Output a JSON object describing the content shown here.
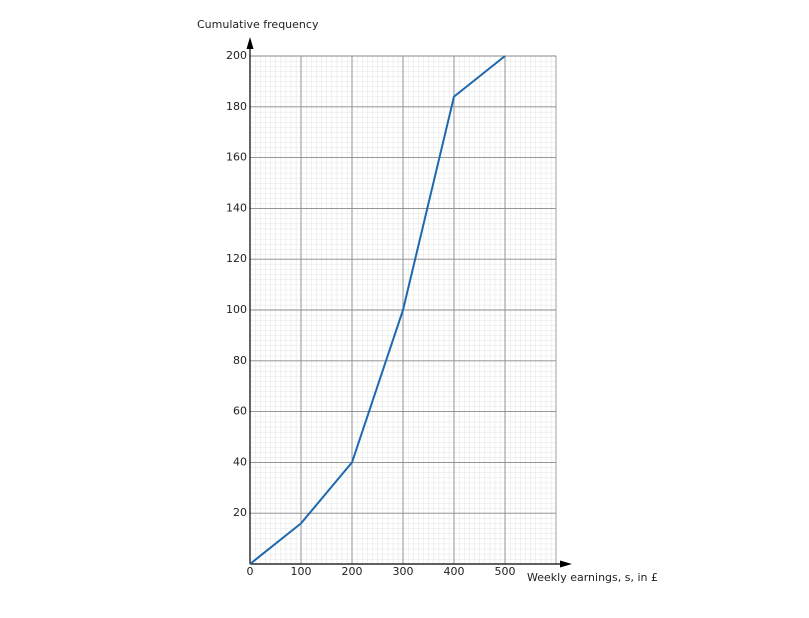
{
  "chart_data": {
    "type": "line",
    "ylabel": "Cumulative frequency",
    "xlabel": "Weekly earnings, s, in £",
    "x": [
      0,
      100,
      200,
      300,
      400,
      500
    ],
    "series": [
      {
        "name": "Cumulative frequency",
        "color": "#1f68b0",
        "values": [
          0,
          16,
          40,
          100,
          184,
          200
        ]
      }
    ],
    "xlim": [
      0,
      600
    ],
    "ylim": [
      0,
      200
    ],
    "xticks": [
      0,
      100,
      200,
      300,
      400,
      500
    ],
    "yticks": [
      20,
      40,
      60,
      80,
      100,
      120,
      140,
      160,
      180,
      200
    ],
    "grid": true
  }
}
